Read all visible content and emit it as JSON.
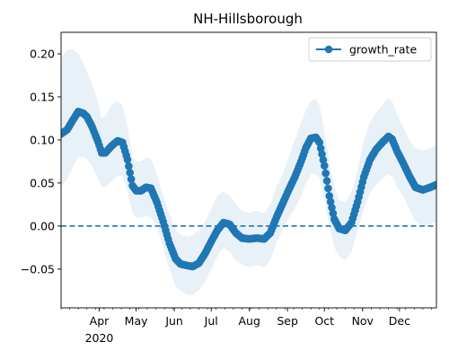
{
  "chart_data": {
    "type": "line",
    "title": "NH-Hillsborough",
    "xlabel": "",
    "ylabel": "",
    "legend": {
      "position": "top-right",
      "entries": [
        "growth_rate"
      ]
    },
    "grid": false,
    "colors": {
      "series": "#1f77b4",
      "band": "#1f77b4",
      "zero_line": "#1f77b4"
    },
    "xlim": [
      "2020-03-01",
      "2020-12-31"
    ],
    "ylim": [
      -0.095,
      0.225
    ],
    "x_ticks": [
      {
        "date": "2020-04-01",
        "label": "Apr",
        "sublabel": "2020"
      },
      {
        "date": "2020-05-01",
        "label": "May",
        "sublabel": ""
      },
      {
        "date": "2020-06-01",
        "label": "Jun",
        "sublabel": ""
      },
      {
        "date": "2020-07-01",
        "label": "Jul",
        "sublabel": ""
      },
      {
        "date": "2020-08-01",
        "label": "Aug",
        "sublabel": ""
      },
      {
        "date": "2020-09-01",
        "label": "Sep",
        "sublabel": ""
      },
      {
        "date": "2020-10-01",
        "label": "Oct",
        "sublabel": ""
      },
      {
        "date": "2020-11-01",
        "label": "Nov",
        "sublabel": ""
      },
      {
        "date": "2020-12-01",
        "label": "Dec",
        "sublabel": ""
      }
    ],
    "y_ticks": [
      {
        "value": 0.2,
        "label": "0.20"
      },
      {
        "value": 0.15,
        "label": "0.15"
      },
      {
        "value": 0.1,
        "label": "0.10"
      },
      {
        "value": 0.05,
        "label": "0.05"
      },
      {
        "value": 0.0,
        "label": "0.00"
      },
      {
        "value": -0.05,
        "label": "−0.05"
      }
    ],
    "reference_line": {
      "y": 0.0,
      "style": "dashed"
    },
    "series": [
      {
        "name": "growth_rate",
        "marker": "circle",
        "points": [
          {
            "x": "2020-03-01",
            "y": 0.107,
            "lower": 0.045,
            "upper": 0.195
          },
          {
            "x": "2020-03-06",
            "y": 0.112,
            "lower": 0.055,
            "upper": 0.205
          },
          {
            "x": "2020-03-11",
            "y": 0.124,
            "lower": 0.07,
            "upper": 0.205
          },
          {
            "x": "2020-03-15",
            "y": 0.133,
            "lower": 0.08,
            "upper": 0.2
          },
          {
            "x": "2020-03-19",
            "y": 0.131,
            "lower": 0.08,
            "upper": 0.19
          },
          {
            "x": "2020-03-22",
            "y": 0.127,
            "lower": 0.078,
            "upper": 0.18
          },
          {
            "x": "2020-03-26",
            "y": 0.116,
            "lower": 0.07,
            "upper": 0.165
          },
          {
            "x": "2020-03-31",
            "y": 0.098,
            "lower": 0.055,
            "upper": 0.145
          },
          {
            "x": "2020-04-03",
            "y": 0.085,
            "lower": 0.045,
            "upper": 0.125
          },
          {
            "x": "2020-04-06",
            "y": 0.085,
            "lower": 0.045,
            "upper": 0.128
          },
          {
            "x": "2020-04-11",
            "y": 0.093,
            "lower": 0.052,
            "upper": 0.14
          },
          {
            "x": "2020-04-16",
            "y": 0.099,
            "lower": 0.058,
            "upper": 0.145
          },
          {
            "x": "2020-04-20",
            "y": 0.097,
            "lower": 0.058,
            "upper": 0.14
          },
          {
            "x": "2020-04-24",
            "y": 0.077,
            "lower": 0.04,
            "upper": 0.115
          },
          {
            "x": "2020-04-28",
            "y": 0.047,
            "lower": 0.015,
            "upper": 0.08
          },
          {
            "x": "2020-05-01",
            "y": 0.041,
            "lower": 0.01,
            "upper": 0.075
          },
          {
            "x": "2020-05-05",
            "y": 0.041,
            "lower": 0.01,
            "upper": 0.075
          },
          {
            "x": "2020-05-09",
            "y": 0.045,
            "lower": 0.012,
            "upper": 0.08
          },
          {
            "x": "2020-05-13",
            "y": 0.044,
            "lower": 0.01,
            "upper": 0.078
          },
          {
            "x": "2020-05-18",
            "y": 0.027,
            "lower": 0.0,
            "upper": 0.06
          },
          {
            "x": "2020-05-23",
            "y": 0.005,
            "lower": -0.025,
            "upper": 0.035
          },
          {
            "x": "2020-05-28",
            "y": -0.02,
            "lower": -0.05,
            "upper": 0.015
          },
          {
            "x": "2020-06-02",
            "y": -0.038,
            "lower": -0.07,
            "upper": -0.005
          },
          {
            "x": "2020-06-06",
            "y": -0.044,
            "lower": -0.075,
            "upper": -0.01
          },
          {
            "x": "2020-06-12",
            "y": -0.046,
            "lower": -0.08,
            "upper": -0.012
          },
          {
            "x": "2020-06-16",
            "y": -0.047,
            "lower": -0.08,
            "upper": -0.01
          },
          {
            "x": "2020-06-21",
            "y": -0.043,
            "lower": -0.075,
            "upper": -0.005
          },
          {
            "x": "2020-06-26",
            "y": -0.032,
            "lower": -0.065,
            "upper": 0.005
          },
          {
            "x": "2020-07-01",
            "y": -0.018,
            "lower": -0.05,
            "upper": 0.02
          },
          {
            "x": "2020-07-06",
            "y": -0.005,
            "lower": -0.035,
            "upper": 0.035
          },
          {
            "x": "2020-07-11",
            "y": 0.004,
            "lower": -0.025,
            "upper": 0.04
          },
          {
            "x": "2020-07-16",
            "y": 0.002,
            "lower": -0.03,
            "upper": 0.035
          },
          {
            "x": "2020-07-21",
            "y": -0.008,
            "lower": -0.04,
            "upper": 0.025
          },
          {
            "x": "2020-07-26",
            "y": -0.014,
            "lower": -0.045,
            "upper": 0.018
          },
          {
            "x": "2020-08-01",
            "y": -0.015,
            "lower": -0.048,
            "upper": 0.015
          },
          {
            "x": "2020-08-07",
            "y": -0.014,
            "lower": -0.045,
            "upper": 0.018
          },
          {
            "x": "2020-08-13",
            "y": -0.015,
            "lower": -0.048,
            "upper": 0.015
          },
          {
            "x": "2020-08-18",
            "y": -0.008,
            "lower": -0.04,
            "upper": 0.025
          },
          {
            "x": "2020-08-23",
            "y": 0.01,
            "lower": -0.02,
            "upper": 0.045
          },
          {
            "x": "2020-08-28",
            "y": 0.026,
            "lower": -0.005,
            "upper": 0.06
          },
          {
            "x": "2020-09-02",
            "y": 0.042,
            "lower": 0.01,
            "upper": 0.08
          },
          {
            "x": "2020-09-07",
            "y": 0.057,
            "lower": 0.02,
            "upper": 0.1
          },
          {
            "x": "2020-09-12",
            "y": 0.075,
            "lower": 0.035,
            "upper": 0.12
          },
          {
            "x": "2020-09-16",
            "y": 0.091,
            "lower": 0.05,
            "upper": 0.135
          },
          {
            "x": "2020-09-20",
            "y": 0.102,
            "lower": 0.06,
            "upper": 0.145
          },
          {
            "x": "2020-09-24",
            "y": 0.103,
            "lower": 0.06,
            "upper": 0.148
          },
          {
            "x": "2020-09-27",
            "y": 0.097,
            "lower": 0.055,
            "upper": 0.14
          },
          {
            "x": "2020-10-01",
            "y": 0.07,
            "lower": 0.03,
            "upper": 0.11
          },
          {
            "x": "2020-10-05",
            "y": 0.035,
            "lower": 0.0,
            "upper": 0.075
          },
          {
            "x": "2020-10-09",
            "y": 0.008,
            "lower": -0.025,
            "upper": 0.045
          },
          {
            "x": "2020-10-13",
            "y": -0.003,
            "lower": -0.035,
            "upper": 0.03
          },
          {
            "x": "2020-10-18",
            "y": -0.005,
            "lower": -0.04,
            "upper": 0.028
          },
          {
            "x": "2020-10-23",
            "y": 0.004,
            "lower": -0.03,
            "upper": 0.04
          },
          {
            "x": "2020-10-28",
            "y": 0.028,
            "lower": -0.005,
            "upper": 0.065
          },
          {
            "x": "2020-11-02",
            "y": 0.057,
            "lower": 0.02,
            "upper": 0.1
          },
          {
            "x": "2020-11-07",
            "y": 0.077,
            "lower": 0.038,
            "upper": 0.12
          },
          {
            "x": "2020-11-12",
            "y": 0.089,
            "lower": 0.048,
            "upper": 0.132
          },
          {
            "x": "2020-11-17",
            "y": 0.097,
            "lower": 0.055,
            "upper": 0.14
          },
          {
            "x": "2020-11-22",
            "y": 0.104,
            "lower": 0.06,
            "upper": 0.15
          },
          {
            "x": "2020-11-25",
            "y": 0.101,
            "lower": 0.058,
            "upper": 0.145
          },
          {
            "x": "2020-11-29",
            "y": 0.087,
            "lower": 0.045,
            "upper": 0.13
          },
          {
            "x": "2020-12-04",
            "y": 0.073,
            "lower": 0.035,
            "upper": 0.115
          },
          {
            "x": "2020-12-09",
            "y": 0.058,
            "lower": 0.02,
            "upper": 0.1
          },
          {
            "x": "2020-12-14",
            "y": 0.045,
            "lower": 0.005,
            "upper": 0.09
          },
          {
            "x": "2020-12-20",
            "y": 0.042,
            "lower": 0.0,
            "upper": 0.088
          },
          {
            "x": "2020-12-26",
            "y": 0.045,
            "lower": 0.002,
            "upper": 0.09
          },
          {
            "x": "2020-12-31",
            "y": 0.048,
            "lower": 0.005,
            "upper": 0.095
          }
        ]
      }
    ]
  }
}
